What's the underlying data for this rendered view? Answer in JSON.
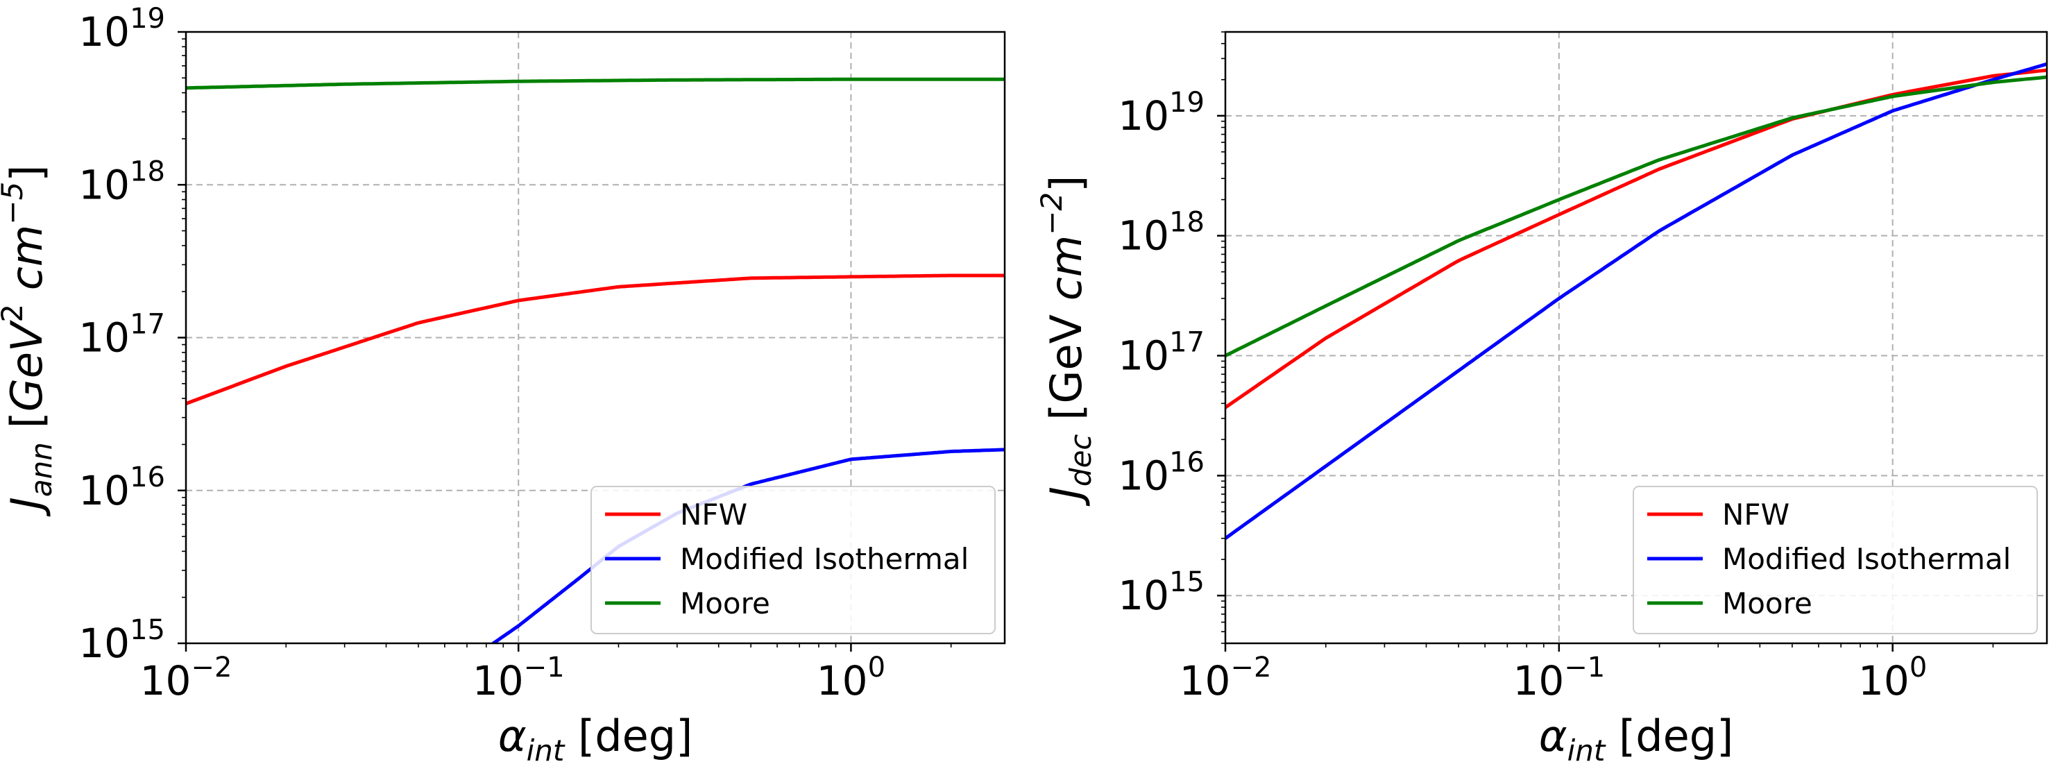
{
  "chart_data": [
    {
      "type": "line",
      "scale": "log-log",
      "title": "",
      "xlabel": {
        "symbol": "α",
        "sub": "int",
        "unit": " [deg]"
      },
      "ylabel": {
        "symbol": "J",
        "sub": "ann",
        "unit_parts": [
          "[",
          "GeV",
          "2",
          " ",
          "cm",
          "−5",
          "]"
        ]
      },
      "xlim": [
        0.01,
        2.9
      ],
      "ylim": [
        1000000000000000.0,
        1e+19
      ],
      "grid": true,
      "xticks": [
        {
          "value": 0.01,
          "base": "10",
          "exp": "−2"
        },
        {
          "value": 0.1,
          "base": "10",
          "exp": "−1"
        },
        {
          "value": 1,
          "base": "10",
          "exp": "0"
        }
      ],
      "yticks": [
        {
          "value": 1000000000000000.0,
          "base": "10",
          "exp": "15"
        },
        {
          "value": 1e+16,
          "base": "10",
          "exp": "16"
        },
        {
          "value": 1e+17,
          "base": "10",
          "exp": "17"
        },
        {
          "value": 1e+18,
          "base": "10",
          "exp": "18"
        },
        {
          "value": 1e+19,
          "base": "10",
          "exp": "19"
        }
      ],
      "legend_position": "lower-right",
      "series": [
        {
          "name": "NFW",
          "color": "#ff0000",
          "x": [
            0.01,
            0.02,
            0.05,
            0.1,
            0.2,
            0.5,
            1.0,
            2.0,
            2.9
          ],
          "y": [
            3.7e+16,
            6.5e+16,
            1.25e+17,
            1.75e+17,
            2.15e+17,
            2.45e+17,
            2.5e+17,
            2.55e+17,
            2.55e+17
          ]
        },
        {
          "name": "Modified Isothermal",
          "color": "#0000ff",
          "x": [
            0.084,
            0.1,
            0.15,
            0.2,
            0.3,
            0.5,
            1.0,
            2.0,
            2.9
          ],
          "y": [
            1000000000000000.0,
            1300000000000000.0,
            2600000000000000.0,
            4300000000000000.0,
            7100000000000000.0,
            1.1e+16,
            1.6e+16,
            1.8e+16,
            1.85e+16
          ]
        },
        {
          "name": "Moore",
          "color": "#008000",
          "x": [
            0.01,
            0.03,
            0.1,
            0.3,
            1.0,
            2.9
          ],
          "y": [
            4.3e+18,
            4.55e+18,
            4.75e+18,
            4.85e+18,
            4.9e+18,
            4.9e+18
          ]
        }
      ]
    },
    {
      "type": "line",
      "scale": "log-log",
      "title": "",
      "xlabel": {
        "symbol": "α",
        "sub": "int",
        "unit": " [deg]"
      },
      "ylabel": {
        "symbol": "J",
        "sub": "dec",
        "unit_parts": [
          "[GeV ",
          "cm",
          "−2",
          "]"
        ]
      },
      "xlim": [
        0.01,
        2.9
      ],
      "ylim": [
        400000000000000.0,
        5e+19
      ],
      "grid": true,
      "xticks": [
        {
          "value": 0.01,
          "base": "10",
          "exp": "−2"
        },
        {
          "value": 0.1,
          "base": "10",
          "exp": "−1"
        },
        {
          "value": 1,
          "base": "10",
          "exp": "0"
        }
      ],
      "yticks": [
        {
          "value": 1000000000000000.0,
          "base": "10",
          "exp": "15"
        },
        {
          "value": 1e+16,
          "base": "10",
          "exp": "16"
        },
        {
          "value": 1e+17,
          "base": "10",
          "exp": "17"
        },
        {
          "value": 1e+18,
          "base": "10",
          "exp": "18"
        },
        {
          "value": 1e+19,
          "base": "10",
          "exp": "19"
        }
      ],
      "legend_position": "lower-right",
      "series": [
        {
          "name": "NFW",
          "color": "#ff0000",
          "x": [
            0.01,
            0.02,
            0.05,
            0.1,
            0.2,
            0.5,
            1.0,
            2.0,
            2.9
          ],
          "y": [
            3.7e+16,
            1.4e+17,
            6.2e+17,
            1.5e+18,
            3.6e+18,
            9.4e+18,
            1.5e+19,
            2.15e+19,
            2.4e+19
          ]
        },
        {
          "name": "Modified Isothermal",
          "color": "#0000ff",
          "x": [
            0.01,
            0.02,
            0.05,
            0.1,
            0.2,
            0.5,
            1.0,
            2.0,
            2.9
          ],
          "y": [
            3000000000000000.0,
            1.2e+16,
            7.5e+16,
            3e+17,
            1.1e+18,
            4.7e+18,
            1.1e+19,
            2e+19,
            2.7e+19
          ]
        },
        {
          "name": "Moore",
          "color": "#008000",
          "x": [
            0.01,
            0.02,
            0.05,
            0.1,
            0.2,
            0.5,
            1.0,
            2.0,
            2.9
          ],
          "y": [
            1e+17,
            2.6e+17,
            9.1e+17,
            2e+18,
            4.3e+18,
            9.6e+18,
            1.45e+19,
            1.9e+19,
            2.1e+19
          ]
        }
      ]
    }
  ]
}
